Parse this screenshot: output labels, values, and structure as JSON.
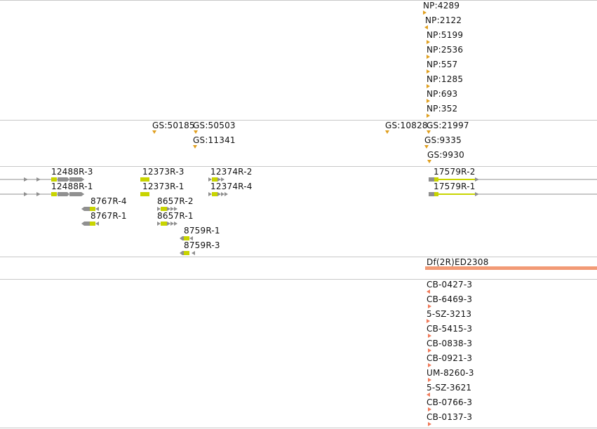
{
  "tracks": {
    "np": {
      "labels": [
        "NP:4289",
        "NP:2122",
        "NP:5199",
        "NP:2536",
        "NP:557",
        "NP:1285",
        "NP:693",
        "NP:352"
      ]
    },
    "gs": {
      "labels": [
        "GS:50185",
        "GS:50503",
        "GS:11341",
        "GS:10828",
        "GS:21997",
        "GS:9335",
        "GS:9930"
      ]
    },
    "rnai": {
      "labels": [
        "12488R-3",
        "12488R-1",
        "12373R-3",
        "12373R-1",
        "12374R-2",
        "12374R-4",
        "8767R-4",
        "8767R-1",
        "8657R-2",
        "8657R-1",
        "8759R-1",
        "8759R-3",
        "17579R-2",
        "17579R-1"
      ]
    },
    "deficiency": {
      "labels": [
        "Df(2R)ED2308"
      ]
    },
    "cb": {
      "labels": [
        "CB-0427-3",
        "CB-6469-3",
        "5-SZ-3213",
        "CB-5415-3",
        "CB-0838-3",
        "CB-0921-3",
        "UM-8260-3",
        "5-SZ-3621",
        "CB-0766-3",
        "CB-0137-3"
      ]
    }
  },
  "colors": {
    "divider": "#c8c8c8",
    "insertion_marker": "#e0a020",
    "cb_marker": "#f07a5a",
    "deficiency_bar": "#f29a75",
    "amplicon": "#c8d400",
    "gene_arrow": "#909090",
    "text": "#111111"
  }
}
